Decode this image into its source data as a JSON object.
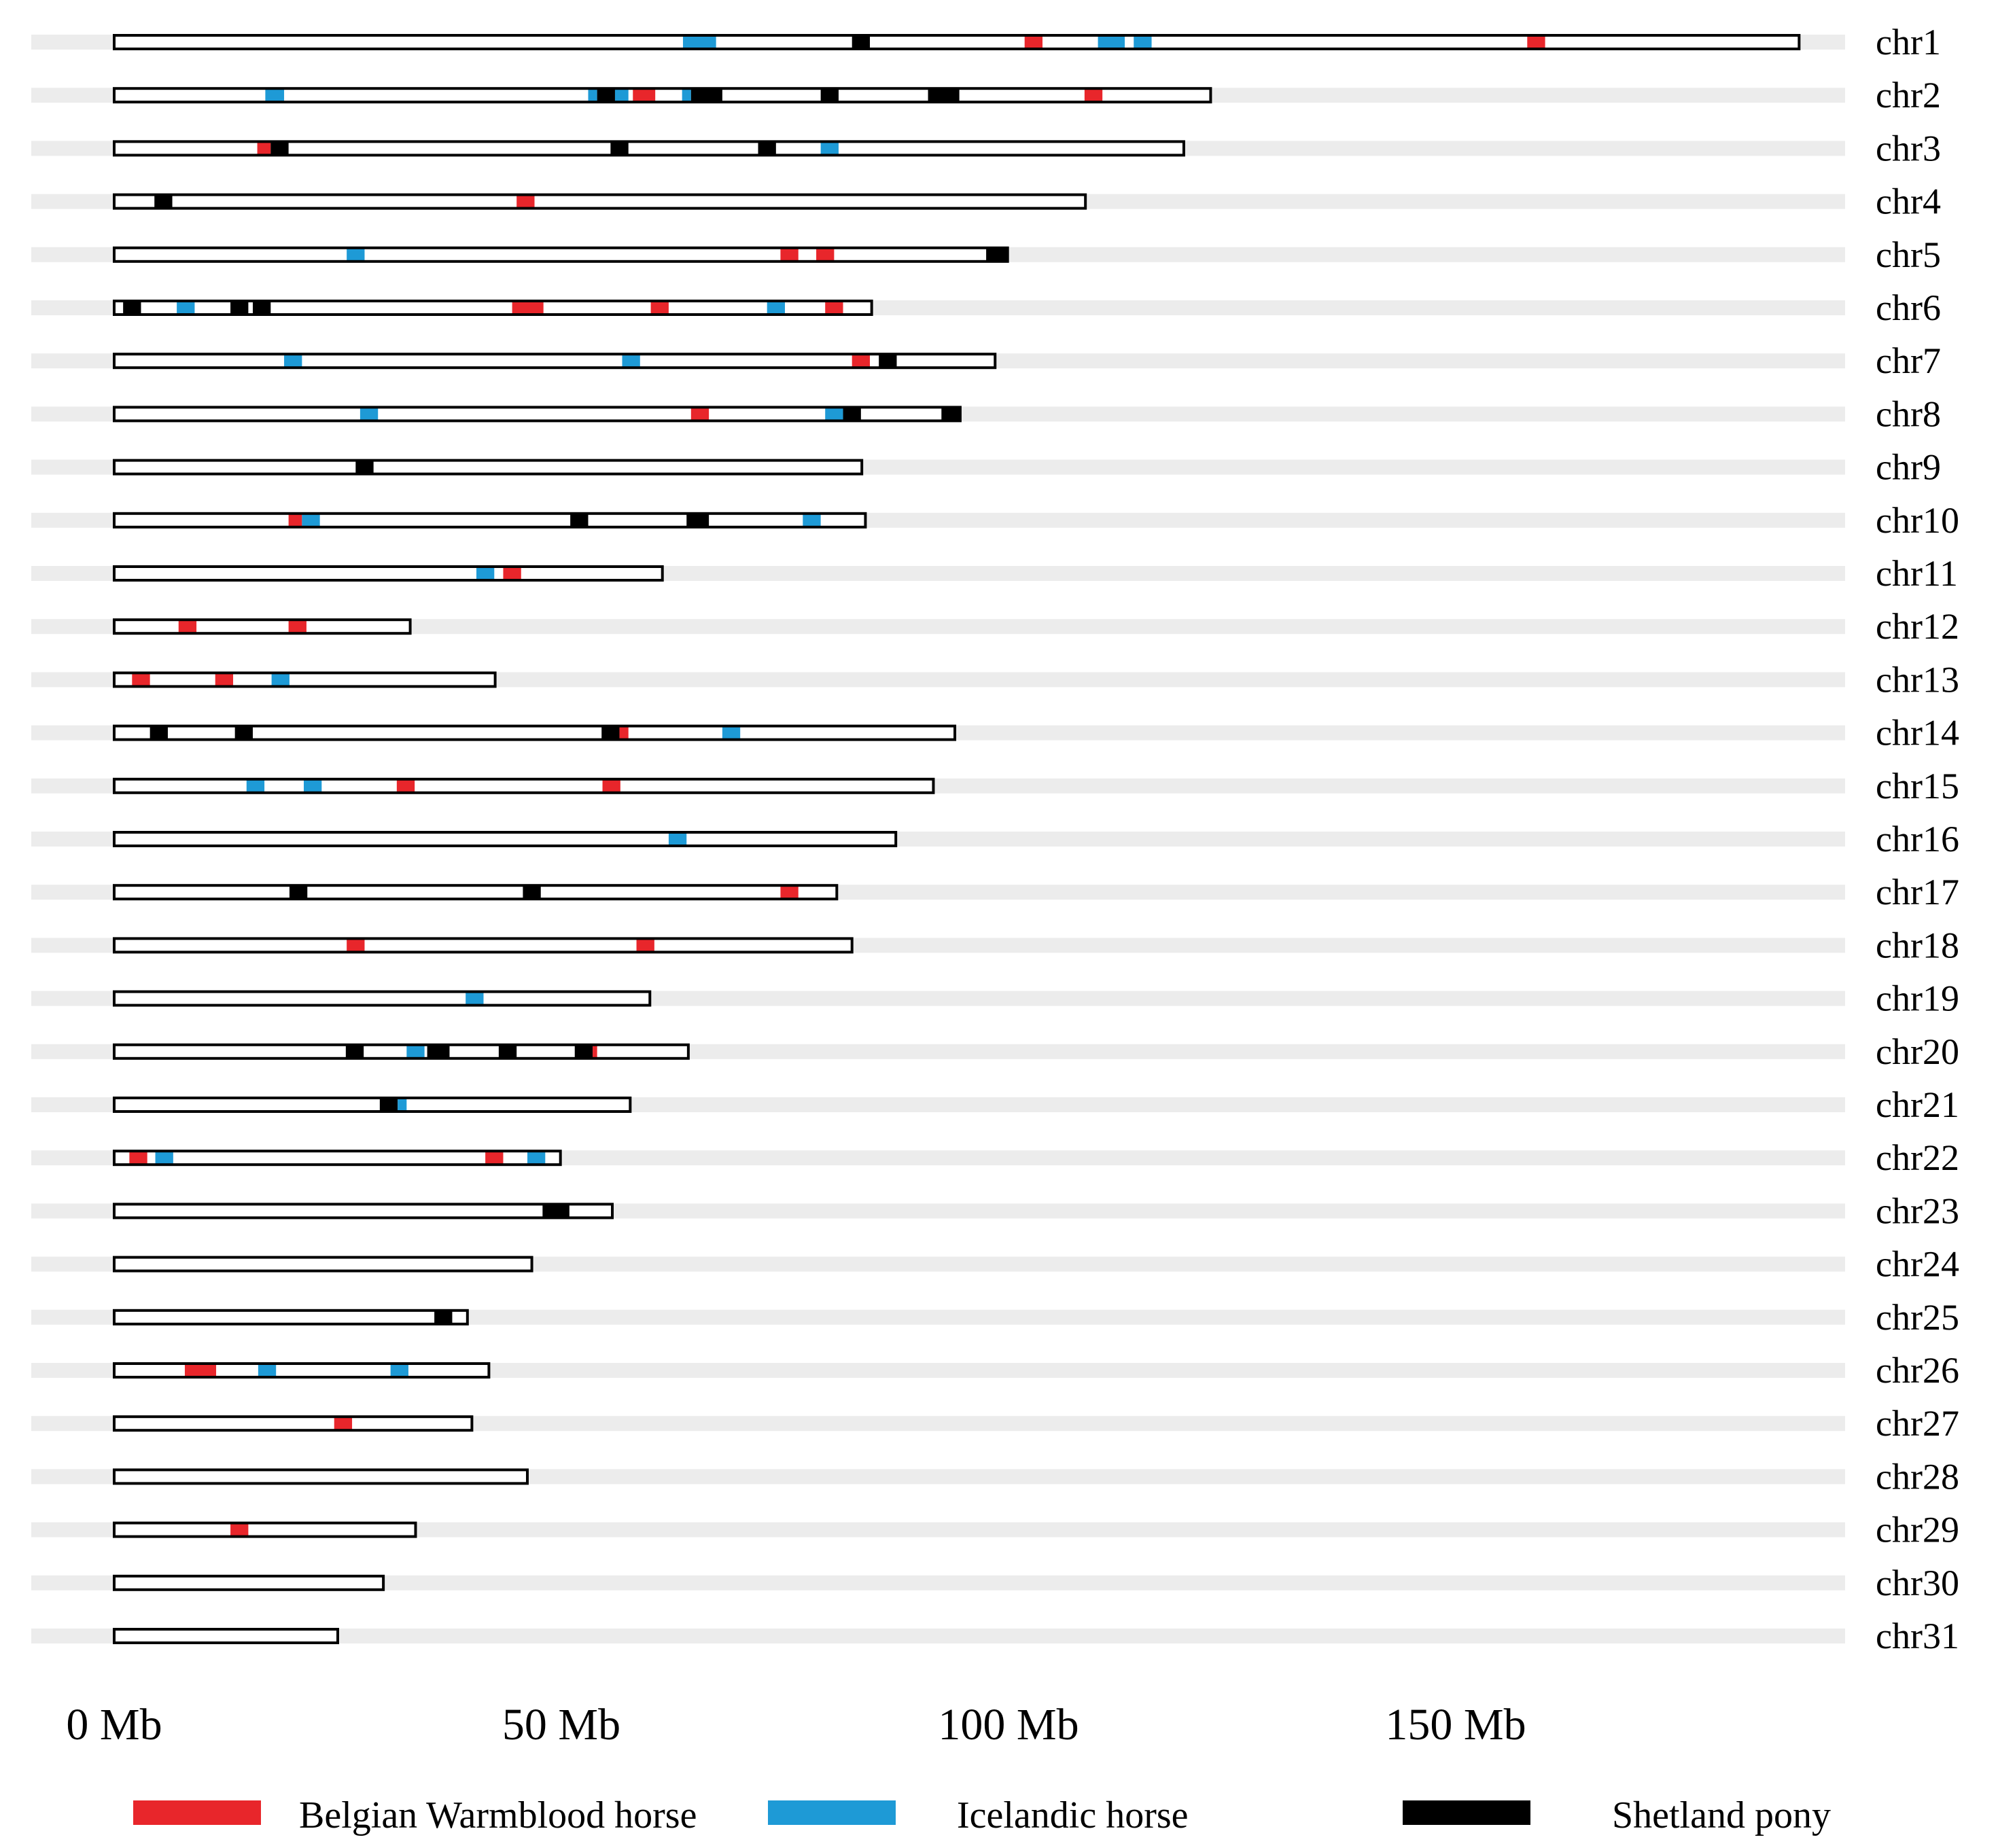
{
  "chart_data": {
    "type": "ideogram",
    "x_unit": "Mb",
    "xlim": [
      0,
      190
    ],
    "ticks": [
      {
        "value": 0,
        "label": "0 Mb"
      },
      {
        "value": 50,
        "label": "50 Mb"
      },
      {
        "value": 100,
        "label": "100 Mb"
      },
      {
        "value": 150,
        "label": "150 Mb"
      }
    ],
    "colors": {
      "Belgian Warmblood horse": "#e8262b",
      "Icelandic horse": "#1e9ad6",
      "Shetland pony": "#000000",
      "track": "#ececec"
    },
    "legend": [
      {
        "name": "Belgian Warmblood horse",
        "color": "#e8262b"
      },
      {
        "name": "Icelandic horse",
        "color": "#1e9ad6"
      },
      {
        "name": "Shetland pony",
        "color": "#000000"
      }
    ],
    "chromosomes": [
      {
        "name": "chr1",
        "length": 188.4,
        "regions": [
          {
            "breed": "Icelandic horse",
            "start": 63.6,
            "end": 67.3
          },
          {
            "breed": "Shetland pony",
            "start": 82.5,
            "end": 84.5
          },
          {
            "breed": "Belgian Warmblood horse",
            "start": 101.8,
            "end": 103.8
          },
          {
            "breed": "Icelandic horse",
            "start": 110.0,
            "end": 113.0
          },
          {
            "breed": "Icelandic horse",
            "start": 114.0,
            "end": 116.0
          },
          {
            "breed": "Belgian Warmblood horse",
            "start": 158.0,
            "end": 160.0
          }
        ]
      },
      {
        "name": "chr2",
        "length": 122.6,
        "regions": [
          {
            "breed": "Icelandic horse",
            "start": 16.9,
            "end": 19.0
          },
          {
            "breed": "Icelandic horse",
            "start": 53.0,
            "end": 54.0
          },
          {
            "breed": "Shetland pony",
            "start": 54.0,
            "end": 56.0
          },
          {
            "breed": "Icelandic horse",
            "start": 56.0,
            "end": 57.5
          },
          {
            "breed": "Belgian Warmblood horse",
            "start": 58.0,
            "end": 60.5
          },
          {
            "breed": "Icelandic horse",
            "start": 63.5,
            "end": 64.5
          },
          {
            "breed": "Shetland pony",
            "start": 64.5,
            "end": 68.0
          },
          {
            "breed": "Shetland pony",
            "start": 79.0,
            "end": 81.0
          },
          {
            "breed": "Shetland pony",
            "start": 91.0,
            "end": 94.5
          },
          {
            "breed": "Belgian Warmblood horse",
            "start": 108.5,
            "end": 110.5
          }
        ]
      },
      {
        "name": "chr3",
        "length": 119.6,
        "regions": [
          {
            "breed": "Belgian Warmblood horse",
            "start": 16.0,
            "end": 17.5
          },
          {
            "breed": "Shetland pony",
            "start": 17.5,
            "end": 19.5
          },
          {
            "breed": "Shetland pony",
            "start": 55.5,
            "end": 57.5
          },
          {
            "breed": "Shetland pony",
            "start": 72.0,
            "end": 74.0
          },
          {
            "breed": "Icelandic horse",
            "start": 79.0,
            "end": 81.0
          }
        ]
      },
      {
        "name": "chr4",
        "length": 108.6,
        "regions": [
          {
            "breed": "Shetland pony",
            "start": 4.5,
            "end": 6.5
          },
          {
            "breed": "Belgian Warmblood horse",
            "start": 45.0,
            "end": 47.0
          }
        ]
      },
      {
        "name": "chr5",
        "length": 99.9,
        "regions": [
          {
            "breed": "Icelandic horse",
            "start": 26.0,
            "end": 28.0
          },
          {
            "breed": "Belgian Warmblood horse",
            "start": 74.5,
            "end": 76.5
          },
          {
            "breed": "Belgian Warmblood horse",
            "start": 78.5,
            "end": 80.5
          },
          {
            "breed": "Shetland pony",
            "start": 97.5,
            "end": 99.9
          }
        ]
      },
      {
        "name": "chr6",
        "length": 84.7,
        "regions": [
          {
            "breed": "Shetland pony",
            "start": 1.0,
            "end": 3.0
          },
          {
            "breed": "Icelandic horse",
            "start": 7.0,
            "end": 9.0
          },
          {
            "breed": "Shetland pony",
            "start": 13.0,
            "end": 15.0
          },
          {
            "breed": "Shetland pony",
            "start": 15.5,
            "end": 17.5
          },
          {
            "breed": "Belgian Warmblood horse",
            "start": 44.5,
            "end": 48.0
          },
          {
            "breed": "Belgian Warmblood horse",
            "start": 60.0,
            "end": 62.0
          },
          {
            "breed": "Icelandic horse",
            "start": 73.0,
            "end": 75.0
          },
          {
            "breed": "Belgian Warmblood horse",
            "start": 79.5,
            "end": 81.5
          }
        ]
      },
      {
        "name": "chr7",
        "length": 98.5,
        "regions": [
          {
            "breed": "Icelandic horse",
            "start": 19.0,
            "end": 21.0
          },
          {
            "breed": "Icelandic horse",
            "start": 56.8,
            "end": 58.8
          },
          {
            "breed": "Belgian Warmblood horse",
            "start": 82.5,
            "end": 84.5
          },
          {
            "breed": "Shetland pony",
            "start": 85.5,
            "end": 87.5
          }
        ]
      },
      {
        "name": "chr8",
        "length": 94.6,
        "regions": [
          {
            "breed": "Icelandic horse",
            "start": 27.5,
            "end": 29.5
          },
          {
            "breed": "Belgian Warmblood horse",
            "start": 64.5,
            "end": 66.5
          },
          {
            "breed": "Icelandic horse",
            "start": 79.5,
            "end": 81.5
          },
          {
            "breed": "Shetland pony",
            "start": 81.5,
            "end": 83.5
          },
          {
            "breed": "Shetland pony",
            "start": 92.5,
            "end": 94.5
          }
        ]
      },
      {
        "name": "chr9",
        "length": 83.6,
        "regions": [
          {
            "breed": "Shetland pony",
            "start": 27.0,
            "end": 29.0
          }
        ]
      },
      {
        "name": "chr10",
        "length": 84.0,
        "regions": [
          {
            "breed": "Belgian Warmblood horse",
            "start": 19.5,
            "end": 21.0
          },
          {
            "breed": "Icelandic horse",
            "start": 21.0,
            "end": 23.0
          },
          {
            "breed": "Shetland pony",
            "start": 51.0,
            "end": 53.0
          },
          {
            "breed": "Shetland pony",
            "start": 64.0,
            "end": 66.5
          },
          {
            "breed": "Icelandic horse",
            "start": 77.0,
            "end": 79.0
          }
        ]
      },
      {
        "name": "chr11",
        "length": 61.3,
        "regions": [
          {
            "breed": "Icelandic horse",
            "start": 40.5,
            "end": 42.5
          },
          {
            "breed": "Belgian Warmblood horse",
            "start": 43.5,
            "end": 45.5
          }
        ]
      },
      {
        "name": "chr12",
        "length": 33.1,
        "regions": [
          {
            "breed": "Belgian Warmblood horse",
            "start": 7.2,
            "end": 9.2
          },
          {
            "breed": "Belgian Warmblood horse",
            "start": 19.5,
            "end": 21.5
          }
        ]
      },
      {
        "name": "chr13",
        "length": 42.6,
        "regions": [
          {
            "breed": "Belgian Warmblood horse",
            "start": 2.0,
            "end": 4.0
          },
          {
            "breed": "Belgian Warmblood horse",
            "start": 11.3,
            "end": 13.3
          },
          {
            "breed": "Icelandic horse",
            "start": 17.6,
            "end": 19.6
          }
        ]
      },
      {
        "name": "chr14",
        "length": 94.0,
        "regions": [
          {
            "breed": "Shetland pony",
            "start": 4.0,
            "end": 6.0
          },
          {
            "breed": "Shetland pony",
            "start": 13.5,
            "end": 15.5
          },
          {
            "breed": "Shetland pony",
            "start": 54.5,
            "end": 56.5
          },
          {
            "breed": "Belgian Warmblood horse",
            "start": 56.5,
            "end": 57.5
          },
          {
            "breed": "Icelandic horse",
            "start": 68.0,
            "end": 70.0
          }
        ]
      },
      {
        "name": "chr15",
        "length": 91.6,
        "regions": [
          {
            "breed": "Icelandic horse",
            "start": 14.8,
            "end": 16.8
          },
          {
            "breed": "Icelandic horse",
            "start": 21.2,
            "end": 23.2
          },
          {
            "breed": "Belgian Warmblood horse",
            "start": 31.6,
            "end": 33.6
          },
          {
            "breed": "Belgian Warmblood horse",
            "start": 54.6,
            "end": 56.6
          }
        ]
      },
      {
        "name": "chr16",
        "length": 87.4,
        "regions": [
          {
            "breed": "Icelandic horse",
            "start": 62.0,
            "end": 64.0
          }
        ]
      },
      {
        "name": "chr17",
        "length": 80.8,
        "regions": [
          {
            "breed": "Shetland pony",
            "start": 19.6,
            "end": 21.6
          },
          {
            "breed": "Shetland pony",
            "start": 45.7,
            "end": 47.7
          },
          {
            "breed": "Belgian Warmblood horse",
            "start": 74.5,
            "end": 76.5
          }
        ]
      },
      {
        "name": "chr18",
        "length": 82.5,
        "regions": [
          {
            "breed": "Belgian Warmblood horse",
            "start": 26.0,
            "end": 28.0
          },
          {
            "breed": "Belgian Warmblood horse",
            "start": 58.4,
            "end": 60.4
          }
        ]
      },
      {
        "name": "chr19",
        "length": 59.9,
        "regions": [
          {
            "breed": "Icelandic horse",
            "start": 39.3,
            "end": 41.3
          }
        ]
      },
      {
        "name": "chr20",
        "length": 64.2,
        "regions": [
          {
            "breed": "Shetland pony",
            "start": 25.9,
            "end": 27.9
          },
          {
            "breed": "Icelandic horse",
            "start": 32.7,
            "end": 34.7
          },
          {
            "breed": "Shetland pony",
            "start": 35.0,
            "end": 37.5
          },
          {
            "breed": "Shetland pony",
            "start": 43.0,
            "end": 45.0
          },
          {
            "breed": "Shetland pony",
            "start": 51.5,
            "end": 53.5
          },
          {
            "breed": "Belgian Warmblood horse",
            "start": 53.5,
            "end": 54.0
          }
        ]
      },
      {
        "name": "chr21",
        "length": 57.7,
        "regions": [
          {
            "breed": "Shetland pony",
            "start": 29.7,
            "end": 31.7
          },
          {
            "breed": "Icelandic horse",
            "start": 31.7,
            "end": 32.7
          }
        ]
      },
      {
        "name": "chr22",
        "length": 49.9,
        "regions": [
          {
            "breed": "Belgian Warmblood horse",
            "start": 1.7,
            "end": 3.7
          },
          {
            "breed": "Icelandic horse",
            "start": 4.6,
            "end": 6.6
          },
          {
            "breed": "Belgian Warmblood horse",
            "start": 41.5,
            "end": 43.5
          },
          {
            "breed": "Icelandic horse",
            "start": 46.2,
            "end": 48.2
          }
        ]
      },
      {
        "name": "chr23",
        "length": 55.7,
        "regions": [
          {
            "breed": "Shetland pony",
            "start": 47.9,
            "end": 50.9
          }
        ]
      },
      {
        "name": "chr24",
        "length": 46.7,
        "regions": []
      },
      {
        "name": "chr25",
        "length": 39.5,
        "regions": [
          {
            "breed": "Shetland pony",
            "start": 35.8,
            "end": 37.8
          }
        ]
      },
      {
        "name": "chr26",
        "length": 41.9,
        "regions": [
          {
            "breed": "Belgian Warmblood horse",
            "start": 7.9,
            "end": 11.4
          },
          {
            "breed": "Icelandic horse",
            "start": 16.1,
            "end": 18.1
          },
          {
            "breed": "Icelandic horse",
            "start": 30.9,
            "end": 32.9
          }
        ]
      },
      {
        "name": "chr27",
        "length": 40.0,
        "regions": [
          {
            "breed": "Belgian Warmblood horse",
            "start": 24.6,
            "end": 26.6
          }
        ]
      },
      {
        "name": "chr28",
        "length": 46.2,
        "regions": []
      },
      {
        "name": "chr29",
        "length": 33.7,
        "regions": [
          {
            "breed": "Belgian Warmblood horse",
            "start": 13.0,
            "end": 15.0
          }
        ]
      },
      {
        "name": "chr30",
        "length": 30.1,
        "regions": []
      },
      {
        "name": "chr31",
        "length": 25.0,
        "regions": []
      }
    ]
  }
}
